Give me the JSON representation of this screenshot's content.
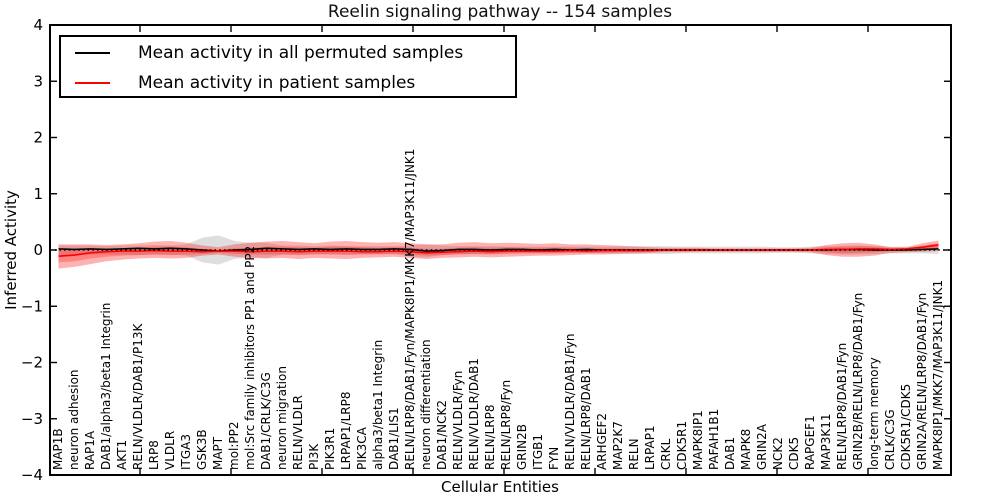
{
  "chart_data": {
    "type": "line",
    "title": "Reelin signaling pathway -- 154 samples",
    "xlabel": "Cellular Entities",
    "ylabel": "Inferred Activity",
    "ylim": [
      -4,
      4
    ],
    "ytick_labels": [
      "4",
      "3",
      "2",
      "1",
      "0",
      "−1",
      "−2",
      "−3",
      "−4"
    ],
    "grid": false,
    "legend_position": "upper left",
    "zero_line": {
      "style": "dotted",
      "color": "#000000",
      "y": 0
    },
    "categories": [
      "MAP1B",
      "neuron adhesion",
      "RAP1A",
      "DAB1/alpha3/beta1 Integrin",
      "AKT1",
      "RELN/VLDLR/DAB1/P13K",
      "LRP8",
      "VLDLR",
      "ITGA3",
      "GSK3B",
      "MAPT",
      "mol:PP2",
      "mol:Src family inhibitors PP1 and PP2",
      "DAB1/CRLK/C3G",
      "neuron migration",
      "RELN/VLDLR",
      "PI3K",
      "PIK3R1",
      "LRPAP1/LRP8",
      "PIK3CA",
      "alpha3/beta1 Integrin",
      "DAB1/LIS1",
      "RELN/LRP8/DAB1/Fyn/MAPK8IP1/MKK7/MAP3K11/JNK1",
      "neuron differentiation",
      "DAB1/NCK2",
      "RELN/VLDLR/Fyn",
      "RELN/VLDLR/DAB1",
      "RELN/LRP8",
      "RELN/LRP8/Fyn",
      "GRIN2B",
      "ITGB1",
      "FYN",
      "RELN/VLDLR/DAB1/Fyn",
      "RELN/LRP8/DAB1",
      "ARHGEF2",
      "MAP2K7",
      "RELN",
      "LRPAP1",
      "CRKL",
      "CDK5R1",
      "MAPK8IP1",
      "PAFAH1B1",
      "DAB1",
      "MAPK8",
      "GRIN2A",
      "NCK2",
      "CDK5",
      "RAPGEF1",
      "MAP3K11",
      "RELN/LRP8/DAB1/Fyn",
      "GRIN2B/RELN/LRP8/DAB1/Fyn",
      "long-term memory",
      "CRLK/C3G",
      "CDK5R1/CDK5",
      "GRIN2A/RELN/LRP8/DAB1/Fyn",
      "MAPK8IP1/MKK7/MAP3K11/JNK1"
    ],
    "series": [
      {
        "name": "Mean activity in all permuted samples",
        "color": "#000000",
        "values": [
          0.02,
          0.01,
          0.02,
          0.01,
          0.02,
          0.03,
          0.02,
          0.03,
          0.02,
          0.0,
          -0.02,
          0.0,
          0.01,
          0.03,
          0.02,
          0.01,
          0.02,
          0.01,
          0.02,
          0.01,
          0.01,
          0.02,
          0.01,
          -0.02,
          -0.01,
          0.01,
          0.01,
          0.0,
          0.01,
          0.01,
          0.0,
          0.01,
          0.0,
          0.01,
          0.0,
          0.0,
          0.0,
          0.0,
          0.0,
          0.0,
          0.0,
          0.0,
          0.0,
          0.0,
          0.0,
          0.0,
          0.0,
          0.0,
          0.0,
          0.01,
          0.01,
          0.0,
          0.0,
          0.0,
          0.01,
          0.02
        ]
      },
      {
        "name": "Mean activity in patient samples",
        "color": "#ff0000",
        "values": [
          -0.11,
          -0.09,
          -0.05,
          -0.03,
          -0.02,
          -0.02,
          -0.01,
          -0.02,
          -0.02,
          -0.03,
          -0.02,
          -0.02,
          -0.03,
          -0.02,
          -0.02,
          -0.03,
          -0.02,
          -0.02,
          -0.02,
          -0.03,
          -0.03,
          -0.02,
          -0.03,
          -0.05,
          -0.04,
          -0.03,
          -0.02,
          -0.03,
          -0.02,
          -0.02,
          -0.02,
          -0.02,
          -0.01,
          -0.02,
          -0.01,
          -0.01,
          -0.01,
          -0.01,
          0.0,
          0.0,
          0.0,
          0.0,
          0.0,
          0.0,
          0.0,
          0.0,
          0.0,
          0.0,
          0.01,
          0.01,
          0.02,
          0.02,
          0.01,
          0.02,
          0.05,
          0.09
        ]
      }
    ],
    "bands": [
      {
        "name": "permuted-samples-spread",
        "color": "#000000",
        "opacity": 0.13,
        "upper": [
          0.08,
          0.08,
          0.08,
          0.07,
          0.08,
          0.08,
          0.09,
          0.08,
          0.1,
          0.22,
          0.26,
          0.16,
          0.13,
          0.13,
          0.08,
          0.08,
          0.07,
          0.08,
          0.07,
          0.07,
          0.07,
          0.07,
          0.08,
          0.1,
          0.08,
          0.07,
          0.07,
          0.07,
          0.06,
          0.06,
          0.06,
          0.06,
          0.06,
          0.06,
          0.06,
          0.06,
          0.07,
          0.07,
          0.07,
          0.06,
          0.06,
          0.06,
          0.06,
          0.06,
          0.06,
          0.05,
          0.05,
          0.06,
          0.07,
          0.08,
          0.08,
          0.07,
          0.06,
          0.06,
          0.06,
          0.07
        ],
        "lower": [
          -0.1,
          -0.09,
          -0.08,
          -0.08,
          -0.08,
          -0.09,
          -0.08,
          -0.08,
          -0.1,
          -0.22,
          -0.26,
          -0.16,
          -0.13,
          -0.14,
          -0.08,
          -0.08,
          -0.07,
          -0.07,
          -0.07,
          -0.07,
          -0.07,
          -0.07,
          -0.12,
          -0.13,
          -0.09,
          -0.07,
          -0.07,
          -0.07,
          -0.06,
          -0.06,
          -0.06,
          -0.06,
          -0.06,
          -0.06,
          -0.06,
          -0.06,
          -0.07,
          -0.07,
          -0.07,
          -0.06,
          -0.06,
          -0.06,
          -0.06,
          -0.06,
          -0.06,
          -0.05,
          -0.05,
          -0.06,
          -0.07,
          -0.08,
          -0.08,
          -0.07,
          -0.06,
          -0.06,
          -0.06,
          -0.07
        ]
      },
      {
        "name": "patient-samples-spread-outer",
        "color": "#ff0000",
        "opacity": 0.3,
        "upper": [
          0.1,
          0.1,
          0.1,
          0.09,
          0.1,
          0.12,
          0.15,
          0.16,
          0.13,
          0.08,
          0.05,
          0.1,
          0.13,
          0.15,
          0.16,
          0.14,
          0.12,
          0.15,
          0.16,
          0.14,
          0.13,
          0.14,
          0.12,
          0.1,
          0.1,
          0.13,
          0.14,
          0.12,
          0.13,
          0.12,
          0.11,
          0.12,
          0.1,
          0.1,
          0.09,
          0.08,
          0.06,
          0.05,
          0.04,
          0.04,
          0.04,
          0.03,
          0.03,
          0.03,
          0.03,
          0.03,
          0.03,
          0.04,
          0.09,
          0.12,
          0.13,
          0.1,
          0.05,
          0.05,
          0.12,
          0.17
        ],
        "lower": [
          -0.33,
          -0.3,
          -0.25,
          -0.2,
          -0.17,
          -0.15,
          -0.14,
          -0.15,
          -0.14,
          -0.1,
          -0.08,
          -0.12,
          -0.14,
          -0.15,
          -0.14,
          -0.16,
          -0.14,
          -0.15,
          -0.16,
          -0.14,
          -0.13,
          -0.12,
          -0.14,
          -0.16,
          -0.14,
          -0.13,
          -0.12,
          -0.13,
          -0.12,
          -0.11,
          -0.1,
          -0.1,
          -0.09,
          -0.08,
          -0.08,
          -0.07,
          -0.06,
          -0.05,
          -0.04,
          -0.04,
          -0.03,
          -0.03,
          -0.03,
          -0.03,
          -0.03,
          -0.03,
          -0.03,
          -0.04,
          -0.09,
          -0.12,
          -0.12,
          -0.1,
          -0.05,
          -0.04,
          -0.03,
          -0.02
        ]
      },
      {
        "name": "patient-samples-spread-inner",
        "color": "#ff0000",
        "opacity": 0.25,
        "upper": [
          0.0,
          0.0,
          0.02,
          0.02,
          0.03,
          0.04,
          0.06,
          0.06,
          0.05,
          0.02,
          0.01,
          0.03,
          0.04,
          0.06,
          0.06,
          0.05,
          0.04,
          0.06,
          0.06,
          0.05,
          0.04,
          0.05,
          0.04,
          0.02,
          0.02,
          0.04,
          0.05,
          0.04,
          0.05,
          0.04,
          0.04,
          0.04,
          0.04,
          0.03,
          0.03,
          0.03,
          0.02,
          0.02,
          0.02,
          0.02,
          0.02,
          0.01,
          0.01,
          0.01,
          0.01,
          0.01,
          0.01,
          0.02,
          0.05,
          0.06,
          0.07,
          0.06,
          0.03,
          0.03,
          0.08,
          0.12
        ],
        "lower": [
          -0.22,
          -0.2,
          -0.15,
          -0.12,
          -0.1,
          -0.09,
          -0.08,
          -0.09,
          -0.08,
          -0.07,
          -0.05,
          -0.07,
          -0.08,
          -0.08,
          -0.08,
          -0.09,
          -0.08,
          -0.08,
          -0.09,
          -0.08,
          -0.08,
          -0.07,
          -0.08,
          -0.1,
          -0.09,
          -0.08,
          -0.07,
          -0.08,
          -0.07,
          -0.06,
          -0.06,
          -0.06,
          -0.05,
          -0.05,
          -0.05,
          -0.04,
          -0.04,
          -0.03,
          -0.02,
          -0.02,
          -0.02,
          -0.02,
          -0.02,
          -0.02,
          -0.02,
          -0.02,
          -0.02,
          -0.02,
          -0.04,
          -0.06,
          -0.05,
          -0.04,
          -0.02,
          -0.01,
          0.01,
          0.03
        ]
      }
    ]
  }
}
